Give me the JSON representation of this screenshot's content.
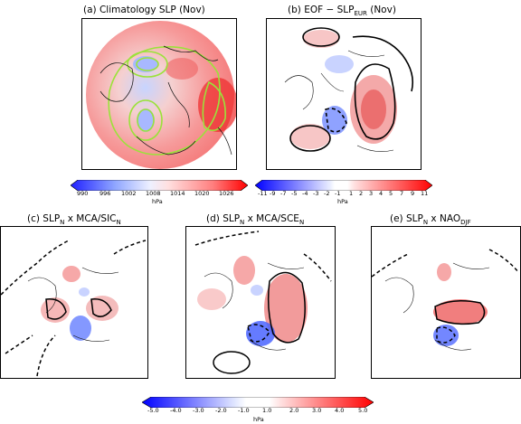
{
  "panels": {
    "a": {
      "title": "(a) Climatology SLP (Nov)"
    },
    "b": {
      "title_main": "(b) EOF − SLP",
      "title_sub": "EUR",
      "title_tail": " (Nov)"
    },
    "c": {
      "pre": "(c) SLP",
      "s1": "N",
      "mid": " x MCA/SIC",
      "s2": "N"
    },
    "d": {
      "pre": "(d) SLP",
      "s1": "N",
      "mid": " x MCA/SCE",
      "s2": "N"
    },
    "e": {
      "pre": "(e) SLP",
      "s1": "N",
      "mid": " x NAO",
      "s2": "DJF"
    }
  },
  "colorbars": {
    "a": {
      "ticks": [
        "990",
        "996",
        "1002",
        "1008",
        "1014",
        "1020",
        "1026"
      ],
      "unit": "hPa",
      "cmap": [
        "#2020ff",
        "#5a6cff",
        "#9ab0ff",
        "#dfe6ff",
        "#ffd6d6",
        "#ff9a9a",
        "#ff4040",
        "#ff0000"
      ]
    },
    "b": {
      "ticks": [
        "-11",
        "-9",
        "-7",
        "-5",
        "-4",
        "-3",
        "-2",
        "-1",
        "1",
        "2",
        "3",
        "4",
        "5",
        "7",
        "9",
        "11"
      ],
      "unit": "hPa"
    },
    "bottom": {
      "ticks": [
        "-5.0",
        "-4.0",
        "-3.0",
        "-2.0",
        "-1.0",
        "1.0",
        "2.0",
        "3.0",
        "4.0",
        "5.0"
      ],
      "unit": "hPa"
    }
  },
  "colors": {
    "green_contour": "#9be23a",
    "red": "#ff0000",
    "blue": "#0000ff"
  }
}
